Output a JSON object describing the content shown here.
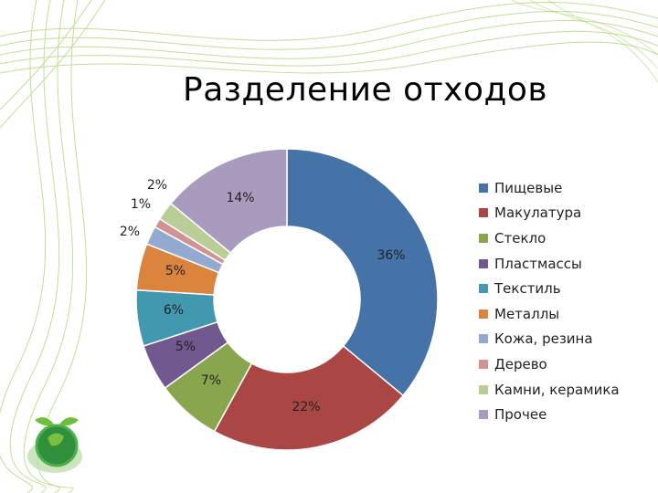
{
  "slide": {
    "title": "Разделение отходов"
  },
  "chart_data": {
    "type": "pie",
    "donut": true,
    "title": "",
    "categories": [
      "Пищевые",
      "Макулатура",
      "Стекло",
      "Пластмассы",
      "Текстиль",
      "Металлы",
      "Кожа, резина",
      "Дерево",
      "Камни, керамика",
      "Прочее"
    ],
    "values": [
      36,
      22,
      7,
      5,
      6,
      5,
      2,
      1,
      2,
      14
    ],
    "labels": [
      "36%",
      "22%",
      "7%",
      "5%",
      "6%",
      "5%",
      "2%",
      "1%",
      "2%",
      "14%"
    ],
    "colors": [
      "#4572a7",
      "#aa4643",
      "#89a54e",
      "#71588f",
      "#4198af",
      "#db843d",
      "#93a9cf",
      "#d19392",
      "#b9cd96",
      "#a99bbd"
    ],
    "legend_position": "right"
  }
}
